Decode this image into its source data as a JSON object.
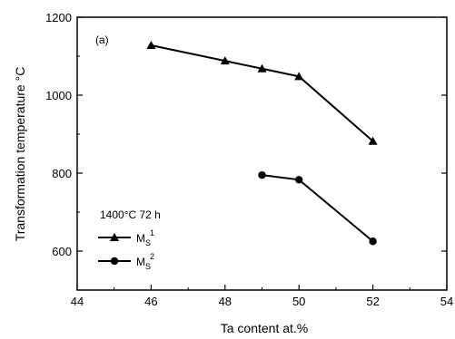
{
  "chart_data": {
    "type": "line",
    "panel_label": "(a)",
    "xlabel": "Ta content at.%",
    "ylabel": "Transformation temperature °C",
    "xlim": [
      44,
      54
    ],
    "ylim": [
      500,
      1200
    ],
    "x_ticks": [
      "44",
      "46",
      "48",
      "50",
      "52",
      "54"
    ],
    "y_ticks": [
      "600",
      "800",
      "1000",
      "1200"
    ],
    "legend_title": "1400°C 72 h",
    "legend_placement": "lower-left",
    "grid": false,
    "series": [
      {
        "name": "M",
        "name_sub": "S",
        "name_sup": "1",
        "marker": "triangle",
        "color": "#000000",
        "points": [
          {
            "x": 46,
            "y": 1128
          },
          {
            "x": 48,
            "y": 1088
          },
          {
            "x": 49,
            "y": 1068
          },
          {
            "x": 50,
            "y": 1048
          },
          {
            "x": 52,
            "y": 882
          }
        ]
      },
      {
        "name": "M",
        "name_sub": "S",
        "name_sup": "2",
        "marker": "circle",
        "color": "#000000",
        "points": [
          {
            "x": 49,
            "y": 795
          },
          {
            "x": 50,
            "y": 783
          },
          {
            "x": 52,
            "y": 625
          }
        ]
      }
    ]
  }
}
